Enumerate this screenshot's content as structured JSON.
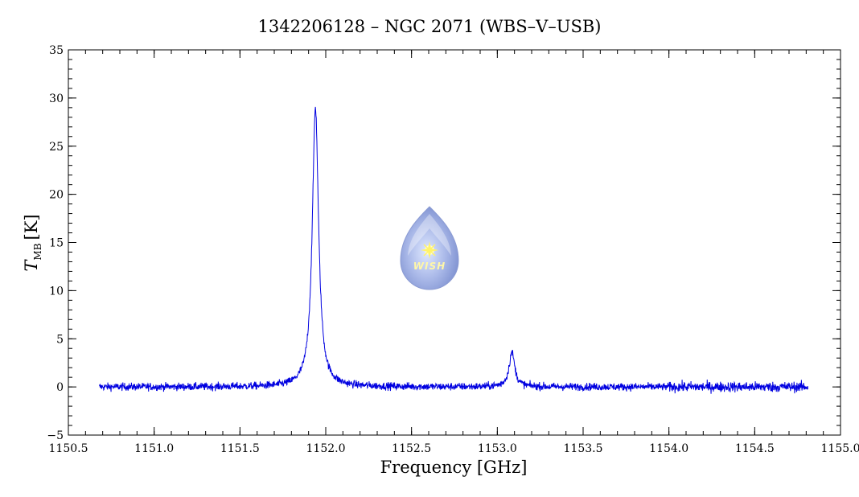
{
  "chart_data": {
    "type": "line",
    "title": "1342206128 – NGC 2071 (WBS–V–USB)",
    "xlabel": "Frequency [GHz]",
    "ylabel_main": "T",
    "ylabel_sub": "MB",
    "ylabel_unit": "[K]",
    "xlim": [
      1150.5,
      1155.0
    ],
    "ylim": [
      -5,
      35
    ],
    "x_ticks": [
      "1150.5",
      "1151.0",
      "1151.5",
      "1152.0",
      "1152.5",
      "1153.0",
      "1153.5",
      "1154.0",
      "1154.5",
      "1155.0"
    ],
    "y_ticks": [
      "−5",
      "0",
      "5",
      "10",
      "15",
      "20",
      "25",
      "30",
      "35"
    ],
    "series": [
      {
        "color": "#0000e0",
        "x_range": [
          1150.68,
          1154.81
        ],
        "baseline": 0.0,
        "noise_rms": 0.2,
        "peaks": [
          {
            "x": 1151.94,
            "height": 29.0,
            "width": 0.022
          },
          {
            "x": 1153.085,
            "height": 3.6,
            "width": 0.02
          }
        ]
      }
    ],
    "grid": false,
    "legend": "none"
  },
  "logo": {
    "text": "WISH"
  }
}
